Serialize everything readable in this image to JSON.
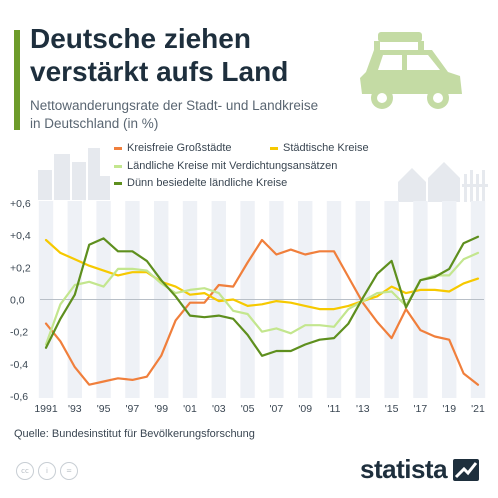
{
  "header": {
    "title": "Deutsche ziehen verstärkt aufs Land",
    "subtitle": "Nettowanderungsrate der Stadt- und Landkreise in Deutschland (in %)"
  },
  "colors": {
    "accent": "#6d9b2a",
    "title": "#1e2f3d",
    "car": "#c4dba4",
    "gridband": "#eef1f6"
  },
  "icons": [
    "car-with-luggage-icon",
    "city-skyline-icon",
    "village-icon",
    "cc-license-icon",
    "by-license-icon",
    "nd-license-icon",
    "statista-logo-icon"
  ],
  "footer": {
    "source": "Quelle: Bundesinstitut für Bevölkerungsforschung",
    "brand": "statista"
  },
  "chart_data": {
    "type": "line",
    "title": "",
    "xlabel": "",
    "ylabel": "",
    "ylim": [
      -0.6,
      0.6
    ],
    "yticks": [
      0.6,
      0.4,
      0.2,
      0.0,
      -0.2,
      -0.4,
      -0.6
    ],
    "ytick_labels": [
      "+0,6",
      "+0,4",
      "+0,2",
      "0,0",
      "-0,2",
      "-0,4",
      "-0,6"
    ],
    "x": [
      1991,
      1992,
      1993,
      1994,
      1995,
      1996,
      1997,
      1998,
      1999,
      2000,
      2001,
      2002,
      2003,
      2004,
      2005,
      2006,
      2007,
      2008,
      2009,
      2010,
      2011,
      2012,
      2013,
      2014,
      2015,
      2016,
      2017,
      2018,
      2019,
      2020,
      2021
    ],
    "xtick_labels": [
      "1991",
      "'93",
      "'95",
      "'97",
      "'99",
      "'01",
      "'03",
      "'05",
      "'07",
      "'09",
      "'11",
      "'13",
      "'15",
      "'17",
      "'19",
      "'21"
    ],
    "xtick_years": [
      1991,
      1993,
      1995,
      1997,
      1999,
      2001,
      2003,
      2005,
      2007,
      2009,
      2011,
      2013,
      2015,
      2017,
      2019,
      2021
    ],
    "grid": "alternating vertical bands",
    "legend_position": "top",
    "series": [
      {
        "name": "Kreisfreie Großstädte",
        "color": "#f07f3c",
        "values": [
          -0.15,
          -0.26,
          -0.42,
          -0.53,
          -0.51,
          -0.49,
          -0.5,
          -0.48,
          -0.35,
          -0.13,
          -0.02,
          -0.02,
          0.09,
          0.08,
          0.23,
          0.37,
          0.28,
          0.31,
          0.28,
          0.3,
          0.3,
          0.14,
          -0.02,
          -0.14,
          -0.24,
          -0.06,
          -0.19,
          -0.23,
          -0.25,
          -0.46,
          -0.53
        ]
      },
      {
        "name": "Städtische Kreise",
        "color": "#f6c900",
        "values": [
          0.37,
          0.29,
          0.25,
          0.21,
          0.18,
          0.15,
          0.17,
          0.17,
          0.11,
          0.08,
          0.03,
          0.04,
          -0.01,
          0.0,
          -0.04,
          -0.03,
          -0.01,
          -0.02,
          -0.04,
          -0.06,
          -0.06,
          -0.04,
          -0.01,
          0.02,
          0.08,
          0.04,
          0.06,
          0.06,
          0.05,
          0.1,
          0.13
        ]
      },
      {
        "name": "Ländliche Kreise mit Verdichtungsansätzen",
        "color": "#c3e68e",
        "values": [
          -0.28,
          -0.03,
          0.09,
          0.11,
          0.08,
          0.19,
          0.19,
          0.18,
          0.1,
          0.04,
          0.06,
          0.07,
          0.04,
          -0.07,
          -0.09,
          -0.2,
          -0.18,
          -0.21,
          -0.16,
          -0.16,
          -0.17,
          -0.06,
          -0.01,
          0.04,
          0.05,
          -0.04,
          0.12,
          0.15,
          0.15,
          0.25,
          0.29
        ]
      },
      {
        "name": "Dünn besiedelte ländliche Kreise",
        "color": "#5e8f1e",
        "values": [
          -0.3,
          -0.12,
          0.03,
          0.34,
          0.38,
          0.3,
          0.3,
          0.24,
          0.12,
          0.02,
          -0.1,
          -0.11,
          -0.1,
          -0.12,
          -0.22,
          -0.35,
          -0.32,
          -0.32,
          -0.28,
          -0.25,
          -0.24,
          -0.15,
          0.01,
          0.16,
          0.24,
          -0.05,
          0.12,
          0.14,
          0.19,
          0.35,
          0.39
        ]
      }
    ]
  }
}
